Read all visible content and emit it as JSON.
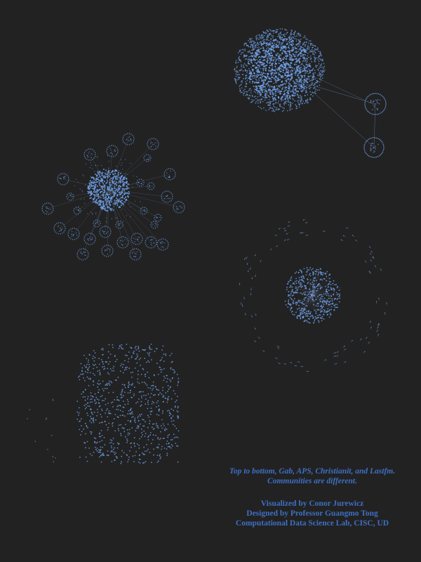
{
  "colors": {
    "background": "#222222",
    "node": "#6f9fe6",
    "edge": "#8fb3ea",
    "caption": "#3e6fc4"
  },
  "networks": [
    "Gab",
    "APS",
    "Christianit",
    "Lastfm"
  ],
  "caption": {
    "line1": "Top to bottom, Gab, APS, Christianit, and Lastfm.",
    "line2": "Communities are different.",
    "credit1": "Visualized by Conor Jurewicz",
    "credit2": "Designed by Professor Guangmo Tong",
    "credit3": "Computational Data Science Lab, CISC, UD"
  }
}
